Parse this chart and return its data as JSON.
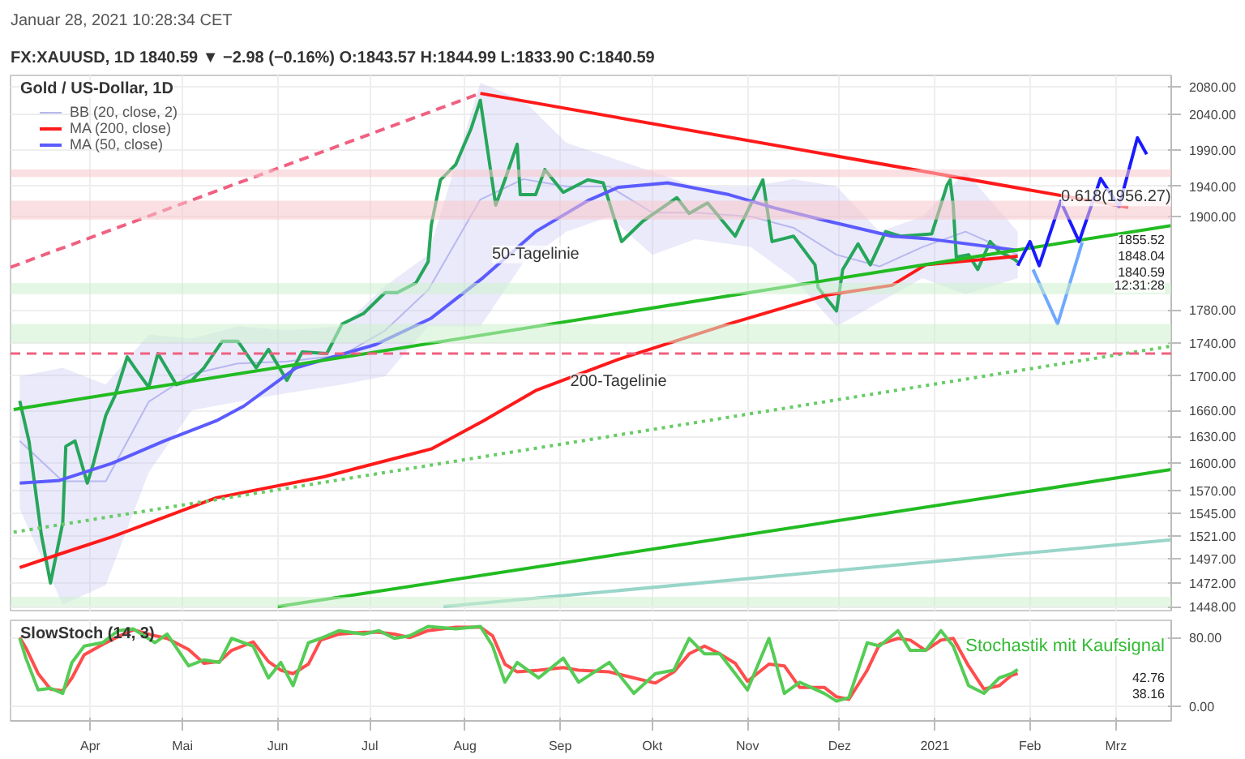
{
  "chart_data": [
    {
      "type": "line",
      "title": "Gold / US-Dollar, 1D",
      "subtitle": "FX:XAUUSD, 1D 1840.59 ▼ −2.98 (−0.16%) O:1843.57 H:1844.99 L:1833.90 C:1840.59",
      "annotations": [
        "Januar 28, 2021 10:28:34 CET",
        {
          "text": "50-Tagelinie",
          "x": "2020-08-24",
          "y": 1880
        },
        {
          "text": "200-Tagelinie",
          "x": "2020-09-20",
          "y": 1720
        },
        {
          "text": "0.618(1956.27)",
          "x": "2021-03-01",
          "y": 1956.27
        },
        "1855.52",
        "1848.04",
        "1840.59",
        "12:31:28"
      ],
      "xlim": [
        "2020-03-06",
        "2021-03-19"
      ],
      "xticks": [
        {
          "value": "2020-04-01",
          "label": null
        },
        {
          "value": "2020-05-01",
          "label": null
        },
        {
          "value": "2020-06-01",
          "label": null
        },
        {
          "value": "2020-07-01",
          "label": null
        },
        {
          "value": "2020-08-01",
          "label": null
        },
        {
          "value": "2020-09-01",
          "label": null
        },
        {
          "value": "2020-10-01",
          "label": null
        },
        {
          "value": "2020-11-01",
          "label": null
        },
        {
          "value": "2020-12-01",
          "label": null
        },
        {
          "value": "2021-01-01",
          "label": null
        },
        {
          "value": "2021-02-01",
          "label": null
        },
        {
          "value": "2021-03-01",
          "label": null
        }
      ],
      "ylim": [
        1444,
        2096
      ],
      "yticks": [
        {
          "value": 1448,
          "label": "1448.00"
        },
        {
          "value": 1472,
          "label": "1472.00"
        },
        {
          "value": 1497,
          "label": "1497.00"
        },
        {
          "value": 1521,
          "label": "1521.00"
        },
        {
          "value": 1545,
          "label": "1545.00"
        },
        {
          "value": 1570,
          "label": "1570.00"
        },
        {
          "value": 1600,
          "label": "1600.00"
        },
        {
          "value": 1630,
          "label": "1630.00"
        },
        {
          "value": 1660,
          "label": "1660.00"
        },
        {
          "value": 1700,
          "label": "1700.00"
        },
        {
          "value": 1740,
          "label": "1740.00"
        },
        {
          "value": 1780,
          "label": "1780.00"
        },
        {
          "value": 1900,
          "label": "1900.00"
        },
        {
          "value": 1940,
          "label": "1940.00"
        },
        {
          "value": 1990,
          "label": "1990.00"
        },
        {
          "value": 2040,
          "label": "2040.00"
        },
        {
          "value": 2080,
          "label": "2080.00"
        }
      ],
      "log": true,
      "grid": true,
      "legend": "top left",
      "tick_labels": "y",
      "ref_lines": [
        {
          "axis": "y",
          "value": 1727,
          "color": "#f06080",
          "line_style": "dashed"
        }
      ],
      "bands": [
        {
          "axis": "y",
          "from": 1953,
          "to": 1963,
          "color": "#f7c6cc"
        },
        {
          "axis": "y",
          "from": 1896,
          "to": 1921,
          "color": "#f7c6cc"
        },
        {
          "axis": "y",
          "from": 1800,
          "to": 1814,
          "color": "#cdf0cd"
        },
        {
          "axis": "y",
          "from": 1740,
          "to": 1763,
          "color": "#cdf0cd"
        },
        {
          "axis": "y",
          "from": 1448,
          "to": 1458,
          "color": "#cdf0cd"
        }
      ],
      "series": [
        {
          "name": "BB (20, close, 2)",
          "color": "#b8b8f0",
          "x": [
            "2020-03-09",
            "2020-03-23",
            "2020-04-06",
            "2020-04-20",
            "2020-05-04",
            "2020-05-19",
            "2020-06-04",
            "2020-06-22",
            "2020-07-06",
            "2020-07-20",
            "2020-08-06",
            "2020-08-20",
            "2020-09-03",
            "2020-09-17",
            "2020-10-01",
            "2020-10-15",
            "2020-11-02",
            "2020-11-16",
            "2020-11-30",
            "2020-12-14",
            "2020-12-28",
            "2021-01-11",
            "2021-01-28"
          ],
          "values": [
            1625,
            1580,
            1580,
            1670,
            1702.5,
            1715,
            1717.5,
            1725,
            1755,
            1805,
            1922.5,
            1950,
            1940,
            1940,
            1905,
            1905,
            1900,
            1885,
            1850,
            1835,
            1860,
            1880,
            1850
          ],
          "upper": [
            1700,
            1710,
            1690,
            1750,
            1745,
            1760,
            1755,
            1760,
            1810,
            1850,
            2085,
            2060,
            2000,
            1980,
            1960,
            1940,
            1940,
            1950,
            1940,
            1880,
            1900,
            1960,
            1880
          ],
          "lower": [
            1550,
            1450,
            1470,
            1590,
            1660,
            1670,
            1680,
            1690,
            1700,
            1760,
            1760,
            1840,
            1880,
            1900,
            1850,
            1870,
            1860,
            1820,
            1760,
            1790,
            1820,
            1800,
            1820
          ]
        },
        {
          "color": "#26a65b",
          "x": [
            "2020-03-09",
            "2020-03-12",
            "2020-03-16",
            "2020-03-19",
            "2020-03-23",
            "2020-03-24",
            "2020-03-27",
            "2020-03-31",
            "2020-04-02",
            "2020-04-06",
            "2020-04-09",
            "2020-04-13",
            "2020-04-16",
            "2020-04-20",
            "2020-04-23",
            "2020-04-29",
            "2020-05-04",
            "2020-05-08",
            "2020-05-14",
            "2020-05-19",
            "2020-05-25",
            "2020-05-29",
            "2020-06-04",
            "2020-06-09",
            "2020-06-17",
            "2020-06-22",
            "2020-06-29",
            "2020-07-06",
            "2020-07-10",
            "2020-07-16",
            "2020-07-20",
            "2020-07-21",
            "2020-07-24",
            "2020-07-29",
            "2020-08-03",
            "2020-08-06",
            "2020-08-07",
            "2020-08-11",
            "2020-08-14",
            "2020-08-18",
            "2020-08-19",
            "2020-08-24",
            "2020-08-27",
            "2020-09-02",
            "2020-09-10",
            "2020-09-15",
            "2020-09-21",
            "2020-09-28",
            "2020-10-09",
            "2020-10-13",
            "2020-10-19",
            "2020-10-28",
            "2020-11-06",
            "2020-11-09",
            "2020-11-16",
            "2020-11-23",
            "2020-11-24",
            "2020-11-30",
            "2020-12-02",
            "2020-12-07",
            "2020-12-11",
            "2020-12-16",
            "2020-12-21",
            "2020-12-31",
            "2021-01-05",
            "2021-01-06",
            "2021-01-07",
            "2021-01-08",
            "2021-01-12",
            "2021-01-15",
            "2021-01-19",
            "2021-01-22",
            "2021-01-27",
            "2021-01-28"
          ],
          "values": [
            1671,
            1625,
            1523,
            1472,
            1535,
            1619,
            1625,
            1578,
            1600,
            1654,
            1677,
            1723,
            1707,
            1687,
            1727,
            1690,
            1695,
            1710,
            1742,
            1742,
            1710,
            1732,
            1695,
            1729,
            1727,
            1763,
            1776,
            1802,
            1802,
            1814,
            1841,
            1888,
            1949,
            1970,
            2020,
            2060,
            2030,
            1915,
            1949,
            1998,
            1929,
            1929,
            1963,
            1932,
            1949,
            1945,
            1867,
            1894,
            1925,
            1904,
            1918,
            1874,
            1949,
            1867,
            1874,
            1837,
            1808,
            1779,
            1831,
            1864,
            1837,
            1880,
            1874,
            1877,
            1942,
            1949,
            1915,
            1847,
            1850,
            1831,
            1867,
            1854,
            1844,
            1840.59
          ]
        },
        {
          "name": "MA (200, close)",
          "color": "#ff1a1a",
          "x": [
            "2020-03-09",
            "2020-03-22",
            "2020-04-08",
            "2020-05-12",
            "2020-06-16",
            "2020-07-21",
            "2020-08-07",
            "2020-08-24",
            "2020-09-20",
            "2020-10-26",
            "2020-11-27",
            "2020-12-18",
            "2020-12-29",
            "2021-01-28"
          ],
          "values": [
            1488,
            1502,
            1520,
            1562,
            1585,
            1616,
            1648,
            1683,
            1720,
            1763,
            1799,
            1811,
            1837,
            1848.04
          ]
        },
        {
          "name": "MA (50, close)",
          "color": "#5b5bff",
          "x": [
            "2020-03-09",
            "2020-03-22",
            "2020-04-08",
            "2020-04-25",
            "2020-05-12",
            "2020-05-21",
            "2020-06-07",
            "2020-07-03",
            "2020-07-21",
            "2020-08-07",
            "2020-08-24",
            "2020-09-10",
            "2020-09-20",
            "2020-10-06",
            "2020-10-26",
            "2020-11-10",
            "2020-11-27",
            "2020-12-18",
            "2020-12-29",
            "2021-01-28"
          ],
          "values": [
            1578,
            1581,
            1600,
            1625,
            1648,
            1665,
            1710,
            1738,
            1770,
            1821,
            1880,
            1921,
            1939,
            1945,
            1929,
            1911,
            1894,
            1874,
            1871,
            1855.52
          ]
        },
        {
          "color": "#ff1a1a",
          "x": [
            "2020-08-06",
            "2021-03-05"
          ],
          "values": [
            2070,
            1912
          ]
        },
        {
          "color": "#f06080",
          "line_style": "dashed",
          "x": [
            "2020-03-06",
            "2020-08-06"
          ],
          "values": [
            1834,
            2070
          ]
        },
        {
          "color": "#22bb22",
          "x": [
            "2020-03-07",
            "2021-03-19"
          ],
          "values": [
            1661,
            1888
          ]
        },
        {
          "color": "#22bb22",
          "x": [
            "2020-06-01",
            "2021-03-19"
          ],
          "values": [
            1448,
            1593
          ]
        },
        {
          "color": "#66cc66",
          "line_style": "dotted",
          "x": [
            "2020-03-07",
            "2021-03-19"
          ],
          "values": [
            1525,
            1736
          ]
        },
        {
          "color": "#99d5c9",
          "x": [
            "2020-07-25",
            "2021-03-19"
          ],
          "values": [
            1448,
            1517
          ]
        },
        {
          "color": "#1a1aff",
          "x": [
            "2021-01-28",
            "2021-02-01",
            "2021-02-04",
            "2021-02-11",
            "2021-02-17",
            "2021-02-24",
            "2021-03-02",
            "2021-03-08",
            "2021-03-11"
          ],
          "values": [
            1836,
            1867,
            1836,
            1920,
            1867,
            1951,
            1913,
            2007,
            1984
          ]
        },
        {
          "color": "#6fa8ff",
          "x": [
            "2021-02-02",
            "2021-02-10",
            "2021-02-18"
          ],
          "values": [
            1831,
            1763,
            1866
          ]
        }
      ]
    },
    {
      "type": "line",
      "title": "SlowStoch (14, 3)",
      "annotations": [
        "Stochastik mit Kaufsignal",
        "42.76",
        "38.16"
      ],
      "xlim": [
        "2020-03-06",
        "2021-03-19"
      ],
      "xticks": [
        {
          "value": "2020-04-01",
          "label": "Apr"
        },
        {
          "value": "2020-05-01",
          "label": "Mai"
        },
        {
          "value": "2020-06-01",
          "label": "Jun"
        },
        {
          "value": "2020-07-01",
          "label": "Jul"
        },
        {
          "value": "2020-08-01",
          "label": "Aug"
        },
        {
          "value": "2020-09-01",
          "label": "Sep"
        },
        {
          "value": "2020-10-01",
          "label": "Okt"
        },
        {
          "value": "2020-11-01",
          "label": "Nov"
        },
        {
          "value": "2020-12-01",
          "label": "Dez"
        },
        {
          "value": "2021-01-01",
          "label": "2021"
        },
        {
          "value": "2021-02-01",
          "label": "Feb"
        },
        {
          "value": "2021-03-01",
          "label": "Mrz"
        }
      ],
      "ylim": [
        -17,
        100
      ],
      "yticks": [
        {
          "value": 0,
          "label": "0.00"
        },
        {
          "value": 80,
          "label": "80.00"
        }
      ],
      "grid": true,
      "x": [
        "2020-03-09",
        "2020-03-11",
        "2020-03-15",
        "2020-03-19",
        "2020-03-23",
        "2020-03-26",
        "2020-03-30",
        "2020-04-05",
        "2020-04-10",
        "2020-04-15",
        "2020-04-22",
        "2020-04-26",
        "2020-05-03",
        "2020-05-08",
        "2020-05-13",
        "2020-05-17",
        "2020-05-24",
        "2020-05-29",
        "2020-06-02",
        "2020-06-06",
        "2020-06-11",
        "2020-06-15",
        "2020-06-21",
        "2020-06-29",
        "2020-07-04",
        "2020-07-09",
        "2020-07-14",
        "2020-07-20",
        "2020-07-29",
        "2020-08-06",
        "2020-08-10",
        "2020-08-14",
        "2020-08-18",
        "2020-08-25",
        "2020-09-02",
        "2020-09-07",
        "2020-09-17",
        "2020-09-25",
        "2020-10-02",
        "2020-10-08",
        "2020-10-13",
        "2020-10-18",
        "2020-10-23",
        "2020-10-28",
        "2020-11-01",
        "2020-11-08",
        "2020-11-13",
        "2020-11-18",
        "2020-11-26",
        "2020-11-30",
        "2020-12-04",
        "2020-12-10",
        "2020-12-14",
        "2020-12-20",
        "2020-12-24",
        "2020-12-29",
        "2021-01-03",
        "2021-01-07",
        "2021-01-12",
        "2021-01-17",
        "2021-01-22",
        "2021-01-26",
        "2021-01-28"
      ],
      "series": [
        {
          "color": "#ff4d4d",
          "values": [
            80,
            68,
            38,
            20,
            18,
            33,
            60,
            72,
            81,
            89,
            82,
            79,
            66,
            50,
            52,
            65,
            75,
            52,
            42,
            38,
            49,
            77,
            84,
            86,
            86,
            84,
            80,
            88,
            92,
            92,
            82,
            49,
            40,
            42,
            45,
            42,
            40,
            33,
            27,
            40,
            61,
            70,
            61,
            50,
            29,
            49,
            47,
            22,
            22,
            11,
            8,
            42,
            72,
            79,
            77,
            65,
            77,
            79,
            47,
            20,
            24,
            36,
            38.16
          ]
        },
        {
          "color": "#55cc55",
          "values": [
            79,
            56,
            19,
            21,
            15,
            51,
            70,
            74,
            88,
            90,
            74,
            84,
            47,
            54,
            51,
            79,
            70,
            33,
            51,
            24,
            74,
            79,
            88,
            84,
            88,
            79,
            82,
            93,
            90,
            93,
            70,
            28,
            51,
            33,
            56,
            28,
            51,
            15,
            38,
            42,
            79,
            61,
            61,
            38,
            19,
            79,
            15,
            28,
            15,
            6,
            10,
            74,
            70,
            88,
            65,
            65,
            88,
            70,
            24,
            15,
            33,
            38,
            42.76
          ]
        }
      ]
    }
  ]
}
